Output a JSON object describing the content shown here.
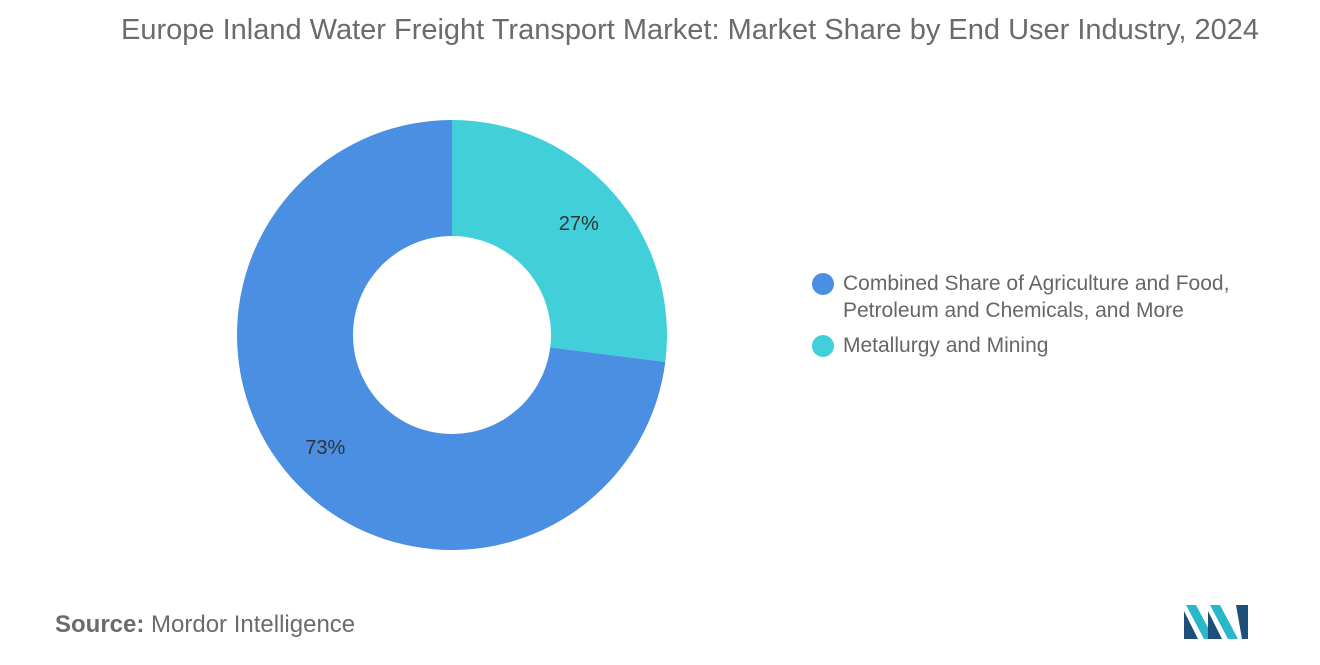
{
  "chart_data": {
    "type": "pie",
    "variant": "donut",
    "title": "Europe Inland Water Freight Transport Market: Market Share by End User Industry, 2024",
    "categories": [
      "Combined Share of Agriculture and Food, Petroleum and Chemicals, and More",
      "Metallurgy and Mining"
    ],
    "values": [
      73,
      27
    ],
    "unit": "%",
    "data_labels": [
      "73%",
      "27%"
    ],
    "colors": [
      "#4a8fe2",
      "#41cfd9"
    ],
    "legend_position": "right"
  },
  "legend": {
    "items": [
      {
        "label": "Combined Share of Agriculture and Food, Petroleum and Chemicals, and More",
        "color": "#4a8fe2"
      },
      {
        "label": "Metallurgy and Mining",
        "color": "#41cfd9"
      }
    ]
  },
  "footer": {
    "source_label": "Source:",
    "source_text": "Mordor Intelligence",
    "logo_icon": "mordor-intelligence-logo-icon",
    "logo_colors": [
      "#1f4e79",
      "#2ab7c8"
    ]
  }
}
